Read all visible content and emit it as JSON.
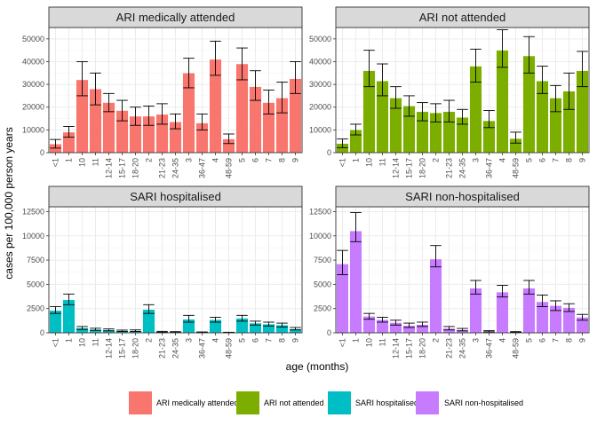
{
  "chart_data": {
    "type": "bar",
    "layout": "facet-grid 2x2",
    "xlabel": "age (months)",
    "ylabel": "cases per 100,000 person years",
    "categories": [
      "<1",
      "1",
      "10",
      "11",
      "12-14",
      "15-17",
      "18-20",
      "2",
      "21-23",
      "24-35",
      "3",
      "36-47",
      "4",
      "48-59",
      "5",
      "6",
      "7",
      "8",
      "9"
    ],
    "grid": true,
    "legend_position": "bottom",
    "facets": [
      {
        "title": "ARI medically attended",
        "color": "#F8766D",
        "ylim": [
          0,
          55000
        ],
        "yticks": [
          0,
          10000,
          20000,
          30000,
          40000,
          50000
        ],
        "values": [
          3800,
          9000,
          32000,
          28000,
          22000,
          18500,
          16000,
          16000,
          16800,
          13500,
          35000,
          13000,
          41000,
          6000,
          39000,
          29000,
          22000,
          24000,
          32500
        ],
        "err_low": [
          2000,
          6800,
          25000,
          21000,
          18000,
          14000,
          12000,
          12000,
          12500,
          10500,
          28500,
          10000,
          34000,
          4000,
          32000,
          23000,
          17000,
          17500,
          26000
        ],
        "err_high": [
          5800,
          11500,
          40000,
          35000,
          26000,
          23000,
          20000,
          20500,
          21500,
          17000,
          41500,
          17000,
          49000,
          8200,
          46000,
          36000,
          27500,
          31000,
          40000
        ]
      },
      {
        "title": "ARI not attended",
        "color": "#7CAE00",
        "ylim": [
          0,
          55000
        ],
        "yticks": [
          0,
          10000,
          20000,
          30000,
          40000,
          50000
        ],
        "values": [
          4000,
          10000,
          36000,
          31500,
          24000,
          20500,
          18000,
          17500,
          18000,
          15500,
          38000,
          14000,
          45000,
          6200,
          42500,
          31500,
          24000,
          27000,
          36000
        ],
        "err_low": [
          2200,
          7800,
          29000,
          25000,
          19500,
          16000,
          14000,
          13500,
          13500,
          12500,
          31000,
          11000,
          37500,
          4200,
          35000,
          26000,
          18000,
          19000,
          29000
        ],
        "err_high": [
          6000,
          12500,
          45000,
          39000,
          29000,
          25000,
          22000,
          21500,
          23000,
          19000,
          45500,
          18500,
          54000,
          9000,
          51000,
          38000,
          29500,
          35000,
          44500
        ]
      },
      {
        "title": "SARI hospitalised",
        "color": "#00BFC4",
        "ylim": [
          0,
          13000
        ],
        "yticks": [
          0,
          2500,
          5000,
          7500,
          10000,
          12500
        ],
        "values": [
          2300,
          3400,
          500,
          350,
          300,
          200,
          200,
          2400,
          100,
          80,
          1400,
          60,
          1350,
          40,
          1500,
          1000,
          900,
          800,
          400
        ],
        "err_low": [
          2000,
          2900,
          350,
          250,
          200,
          130,
          130,
          2000,
          60,
          40,
          1100,
          30,
          1100,
          20,
          1200,
          800,
          700,
          600,
          300
        ],
        "err_high": [
          2700,
          4000,
          650,
          470,
          400,
          280,
          300,
          2900,
          150,
          120,
          1800,
          90,
          1600,
          60,
          1800,
          1200,
          1100,
          1000,
          550
        ]
      },
      {
        "title": "SARI non-hospitalised",
        "color": "#C77CFF",
        "ylim": [
          0,
          13000
        ],
        "yticks": [
          0,
          2500,
          5000,
          7500,
          10000,
          12500
        ],
        "values": [
          7100,
          10500,
          1700,
          1350,
          1050,
          750,
          850,
          7600,
          450,
          300,
          4600,
          150,
          4200,
          80,
          4600,
          3200,
          2800,
          2600,
          1600
        ],
        "err_low": [
          6000,
          9400,
          1400,
          1100,
          800,
          550,
          650,
          6800,
          300,
          200,
          4000,
          100,
          3700,
          50,
          4000,
          2700,
          2300,
          2200,
          1300
        ],
        "err_high": [
          8500,
          12400,
          2000,
          1600,
          1300,
          1000,
          1100,
          9000,
          650,
          450,
          5400,
          220,
          4900,
          120,
          5400,
          3900,
          3300,
          3000,
          1900
        ]
      }
    ],
    "legend": [
      {
        "label": "ARI medically attended",
        "color": "#F8766D"
      },
      {
        "label": "ARI not attended",
        "color": "#7CAE00"
      },
      {
        "label": "SARI hospitalised",
        "color": "#00BFC4"
      },
      {
        "label": "SARI non-hospitalised",
        "color": "#C77CFF"
      }
    ]
  }
}
